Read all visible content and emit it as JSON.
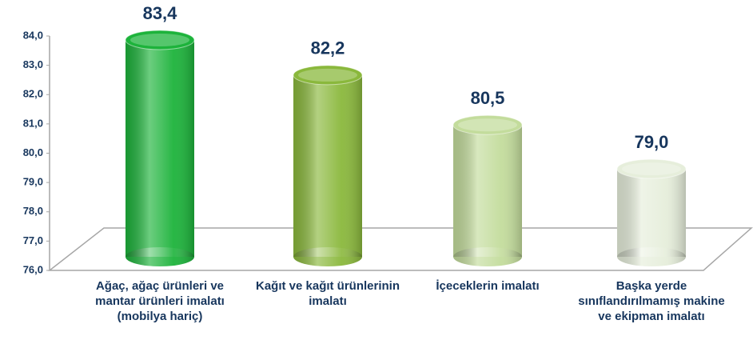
{
  "chart_data": {
    "type": "bar",
    "categories": [
      "Ağaç, ağaç ürünleri ve mantar ürünleri imalatı (mobilya hariç)",
      "Kağıt ve kağıt ürünlerinin imalatı",
      "İçeceklerin imalatı",
      "Başka yerde sınıflandırılmamış makine ve ekipman imalatı"
    ],
    "values": [
      83.4,
      82.2,
      80.5,
      79.0
    ],
    "value_labels": [
      "83,4",
      "82,2",
      "80,5",
      "79,0"
    ],
    "colors": [
      "#1db33b",
      "#8ab83c",
      "#c3dc9c",
      "#e6eedb"
    ],
    "ylim": [
      76,
      84
    ],
    "yticks": [
      {
        "value": 76,
        "label": "76,0"
      },
      {
        "value": 77,
        "label": "77,0"
      },
      {
        "value": 78,
        "label": "78,0"
      },
      {
        "value": 79,
        "label": "79,0"
      },
      {
        "value": 80,
        "label": "80,0"
      },
      {
        "value": 81,
        "label": "81,0"
      },
      {
        "value": 82,
        "label": "82,0"
      },
      {
        "value": 83,
        "label": "83,0"
      },
      {
        "value": 84,
        "label": "84,0"
      }
    ],
    "grid": false
  }
}
